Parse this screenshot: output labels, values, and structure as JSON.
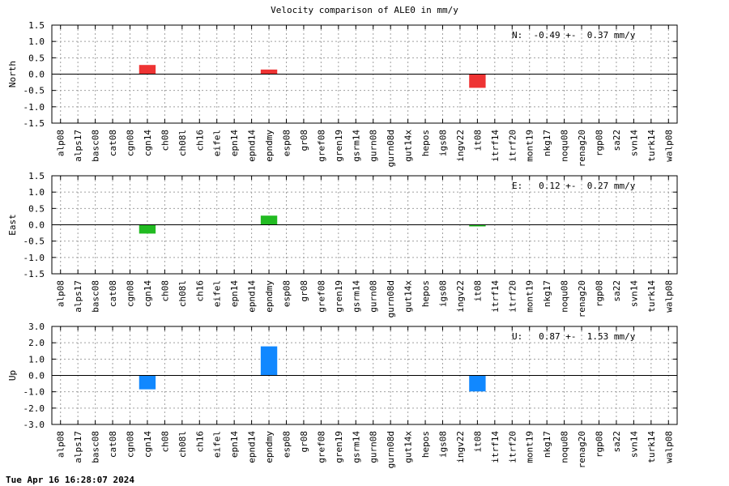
{
  "title": "Velocity comparison of ALE0 in mm/y",
  "footer_timestamp": "Tue Apr 16 16:28:07 2024",
  "chart_data": [
    {
      "type": "bar",
      "title": "",
      "ylabel": "North",
      "ylim": [
        -1.5,
        1.5
      ],
      "yticks": [
        1.5,
        1.0,
        0.5,
        0.0,
        -0.5,
        -1.0,
        -1.5
      ],
      "ytick_labels": [
        "1.5",
        "1.0",
        "0.5",
        "0.0",
        "-0.5",
        "-1.0",
        "-1.5"
      ],
      "annotation": "N:  -0.49 +-  0.37 mm/y",
      "color": "#ee3333",
      "categories": [
        "alp08",
        "alps17",
        "basc08",
        "cat08",
        "cgn08",
        "cgn14",
        "ch08",
        "ch08l",
        "ch16",
        "eifel",
        "epn14",
        "epnd14",
        "epndmy",
        "esp08",
        "gr08",
        "gref08",
        "gren19",
        "gsrm14",
        "gurn08",
        "gurn08d",
        "gut14x",
        "hepos",
        "igs08",
        "ingv22",
        "it08",
        "itrf14",
        "itrf20",
        "mont19",
        "nkg17",
        "noqu08",
        "renag20",
        "rgp08",
        "sa22",
        "svn14",
        "turk14",
        "walp08"
      ],
      "values": [
        null,
        null,
        null,
        null,
        null,
        0.28,
        null,
        null,
        null,
        null,
        null,
        null,
        0.14,
        null,
        null,
        null,
        null,
        null,
        null,
        null,
        null,
        null,
        null,
        null,
        -0.42,
        null,
        null,
        null,
        null,
        null,
        null,
        null,
        null,
        null,
        null,
        null
      ]
    },
    {
      "type": "bar",
      "title": "",
      "ylabel": "East",
      "ylim": [
        -1.5,
        1.5
      ],
      "yticks": [
        1.5,
        1.0,
        0.5,
        0.0,
        -0.5,
        -1.0,
        -1.5
      ],
      "ytick_labels": [
        "1.5",
        "1.0",
        "0.5",
        "0.0",
        "-0.5",
        "-1.0",
        "-1.5"
      ],
      "annotation": "E:   0.12 +-  0.27 mm/y",
      "color": "#22bb22",
      "categories": [
        "alp08",
        "alps17",
        "basc08",
        "cat08",
        "cgn08",
        "cgn14",
        "ch08",
        "ch08l",
        "ch16",
        "eifel",
        "epn14",
        "epnd14",
        "epndmy",
        "esp08",
        "gr08",
        "gref08",
        "gren19",
        "gsrm14",
        "gurn08",
        "gurn08d",
        "gut14x",
        "hepos",
        "igs08",
        "ingv22",
        "it08",
        "itrf14",
        "itrf20",
        "mont19",
        "nkg17",
        "noqu08",
        "renag20",
        "rgp08",
        "sa22",
        "svn14",
        "turk14",
        "walp08"
      ],
      "values": [
        null,
        null,
        null,
        null,
        null,
        -0.27,
        null,
        null,
        null,
        null,
        null,
        null,
        0.28,
        null,
        null,
        null,
        null,
        null,
        null,
        null,
        null,
        null,
        null,
        null,
        -0.05,
        null,
        null,
        null,
        null,
        null,
        null,
        null,
        null,
        null,
        null,
        null
      ]
    },
    {
      "type": "bar",
      "title": "",
      "ylabel": "Up",
      "ylim": [
        -3.0,
        3.0
      ],
      "yticks": [
        3.0,
        2.0,
        1.0,
        0.0,
        -1.0,
        -2.0,
        -3.0
      ],
      "ytick_labels": [
        "3.0",
        "2.0",
        "1.0",
        "0.0",
        "-1.0",
        "-2.0",
        "-3.0"
      ],
      "annotation": "U:   0.87 +-  1.53 mm/y",
      "color": "#1188ff",
      "categories": [
        "alp08",
        "alps17",
        "basc08",
        "cat08",
        "cgn08",
        "cgn14",
        "ch08",
        "ch08l",
        "ch16",
        "eifel",
        "epn14",
        "epnd14",
        "epndmy",
        "esp08",
        "gr08",
        "gref08",
        "gren19",
        "gsrm14",
        "gurn08",
        "gurn08d",
        "gut14x",
        "hepos",
        "igs08",
        "ingv22",
        "it08",
        "itrf14",
        "itrf20",
        "mont19",
        "nkg17",
        "noqu08",
        "renag20",
        "rgp08",
        "sa22",
        "svn14",
        "turk14",
        "walp08"
      ],
      "values": [
        null,
        null,
        null,
        null,
        null,
        -0.85,
        null,
        null,
        null,
        null,
        null,
        null,
        1.78,
        null,
        null,
        null,
        null,
        null,
        null,
        null,
        null,
        null,
        null,
        null,
        -0.98,
        null,
        null,
        null,
        null,
        null,
        null,
        null,
        null,
        null,
        null,
        null
      ]
    }
  ]
}
